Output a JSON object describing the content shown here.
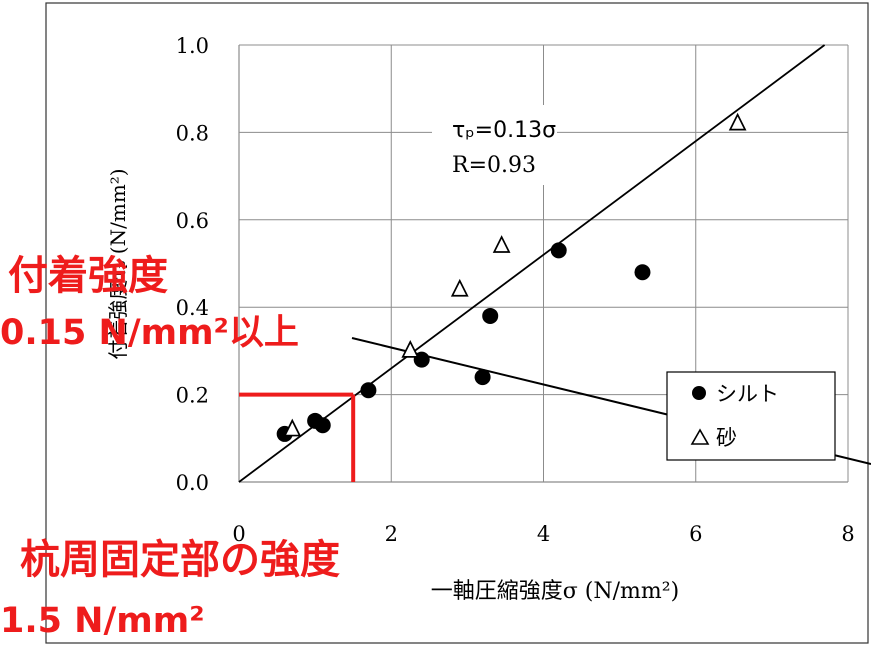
{
  "chart_data": {
    "type": "scatter",
    "xlabel": "一軸圧縮強度σ (N/mm²)",
    "ylabel": "付着強度τₚ (N/mm²)",
    "xlim": [
      0,
      8
    ],
    "ylim": [
      0,
      1.0
    ],
    "x_ticks": [
      "0",
      "2",
      "4",
      "6",
      "8"
    ],
    "y_ticks": [
      "0.0",
      "0.2",
      "0.4",
      "0.6",
      "0.8",
      "1.0"
    ],
    "grid": true,
    "legend_position": "right",
    "series": [
      {
        "name": "シルト",
        "marker": "filled-circle",
        "points": [
          [
            0.6,
            0.11
          ],
          [
            1.0,
            0.14
          ],
          [
            1.1,
            0.13
          ],
          [
            1.7,
            0.21
          ],
          [
            2.4,
            0.28
          ],
          [
            3.2,
            0.24
          ],
          [
            3.3,
            0.38
          ],
          [
            4.2,
            0.53
          ],
          [
            5.3,
            0.48
          ]
        ]
      },
      {
        "name": "砂",
        "marker": "open-triangle",
        "points": [
          [
            0.7,
            0.12
          ],
          [
            2.25,
            0.3
          ],
          [
            2.9,
            0.44
          ],
          [
            3.45,
            0.54
          ],
          [
            6.55,
            0.82
          ]
        ]
      }
    ],
    "regression": {
      "slope": 0.13,
      "equation": "τₚ=0.13σ",
      "r_label": "R=0.93"
    },
    "annotations": {
      "strength_value": 1.5,
      "bond_value": 0.2
    }
  },
  "overlay": {
    "bond_title": "付着強度",
    "bond_value": "0.15 N/mm²以上",
    "fix_title": "杭周固定部の強度",
    "fix_value": "1.5 N/mm²"
  },
  "colors": {
    "accent": "#ee1c1c",
    "ink": "#000000",
    "grid": "#8c8c8c"
  }
}
